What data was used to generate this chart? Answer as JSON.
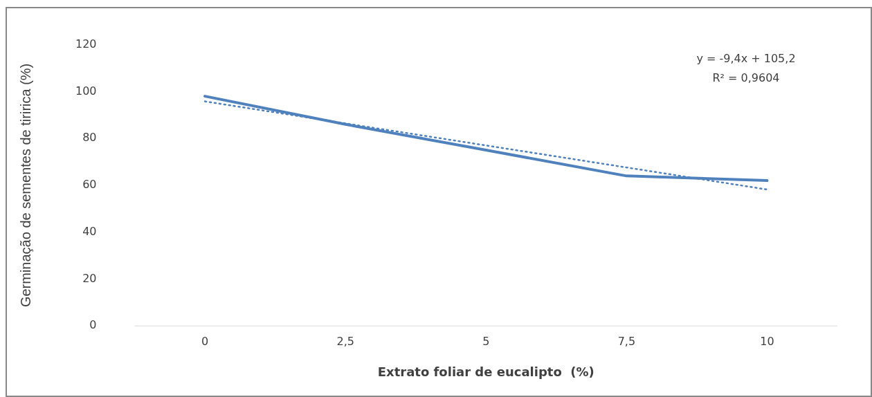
{
  "chart_data": {
    "type": "line",
    "xlabel": "Extrato foliar de eucalipto  (%)",
    "ylabel": "Germinação de sementes de tiririca (%)",
    "categories": [
      "0",
      "2,5",
      "5",
      "7,5",
      "10"
    ],
    "series": [
      {
        "type": "line",
        "color": "#4f81bd",
        "values": [
          98,
          86,
          75,
          64,
          62
        ],
        "line_style": "solid"
      },
      {
        "type": "line",
        "color": "#4f81bd",
        "values": [
          95.8,
          86.4,
          77,
          67.6,
          58.2
        ],
        "line_style": "dotted"
      }
    ],
    "ylim": [
      0,
      120
    ],
    "yticks": [
      0,
      20,
      40,
      60,
      80,
      100,
      120
    ],
    "grid": false,
    "legend": false,
    "marker": "none",
    "annotations": [
      "y = -9,4x + 105,2\nR² = 0,9604"
    ]
  }
}
